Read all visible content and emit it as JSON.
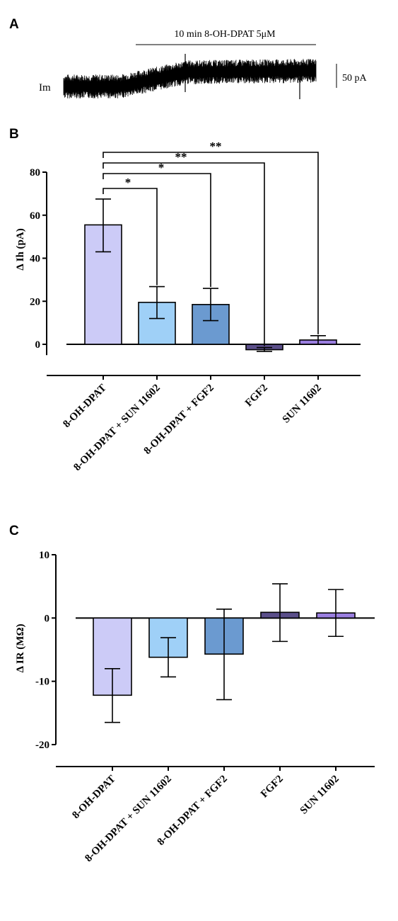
{
  "panels": {
    "a": {
      "label": "A"
    },
    "b": {
      "label": "B"
    },
    "c": {
      "label": "C"
    }
  },
  "trace": {
    "drug_bar_label": "10 min  8-OH-DPAT  5μM",
    "scale_label": "50 pA",
    "trace_label": "Im"
  },
  "colors": [
    "#cccbf7",
    "#9fd0f7",
    "#6b9ad0",
    "#5b4f8a",
    "#9b7fe0"
  ],
  "chart_data": [
    {
      "type": "bar",
      "title": "",
      "xlabel": "",
      "ylabel": "Δ Ih (pA)",
      "categories": [
        "8-OH-DPAT",
        "8-OH-DPAT + SUN 11602",
        "8-OH-DPAT + FGF2",
        "FGF2",
        "SUN 11602"
      ],
      "values": [
        55.5,
        19.5,
        18.5,
        -2.5,
        2
      ],
      "error_upper": [
        67.5,
        26.8,
        26,
        -1.5,
        4
      ],
      "error_lower": [
        43,
        12,
        11,
        -3.3,
        0
      ],
      "ylim": [
        -5,
        80
      ],
      "yticks": [
        "0",
        "20",
        "40",
        "60",
        "80"
      ],
      "significance": [
        {
          "from": 0,
          "to": 1,
          "label": "*"
        },
        {
          "from": 0,
          "to": 2,
          "label": "*"
        },
        {
          "from": 0,
          "to": 3,
          "label": "**"
        },
        {
          "from": 0,
          "to": 4,
          "label": "**"
        }
      ]
    },
    {
      "type": "bar",
      "title": "",
      "xlabel": "",
      "ylabel": "Δ IR (MΩ)",
      "categories": [
        "8-OH-DPAT",
        "8-OH-DPAT + SUN 11602",
        "8-OH-DPAT + FGF2",
        "FGF2",
        "SUN 11602"
      ],
      "values": [
        -12.2,
        -6.2,
        -5.7,
        0.9,
        0.8
      ],
      "error_upper": [
        -8,
        -3.1,
        1.4,
        5.4,
        4.5
      ],
      "error_lower": [
        -16.5,
        -9.3,
        -12.9,
        -3.7,
        -2.9
      ],
      "ylim": [
        -20,
        10
      ],
      "yticks": [
        "10",
        "0",
        "-10",
        "-20"
      ]
    }
  ]
}
